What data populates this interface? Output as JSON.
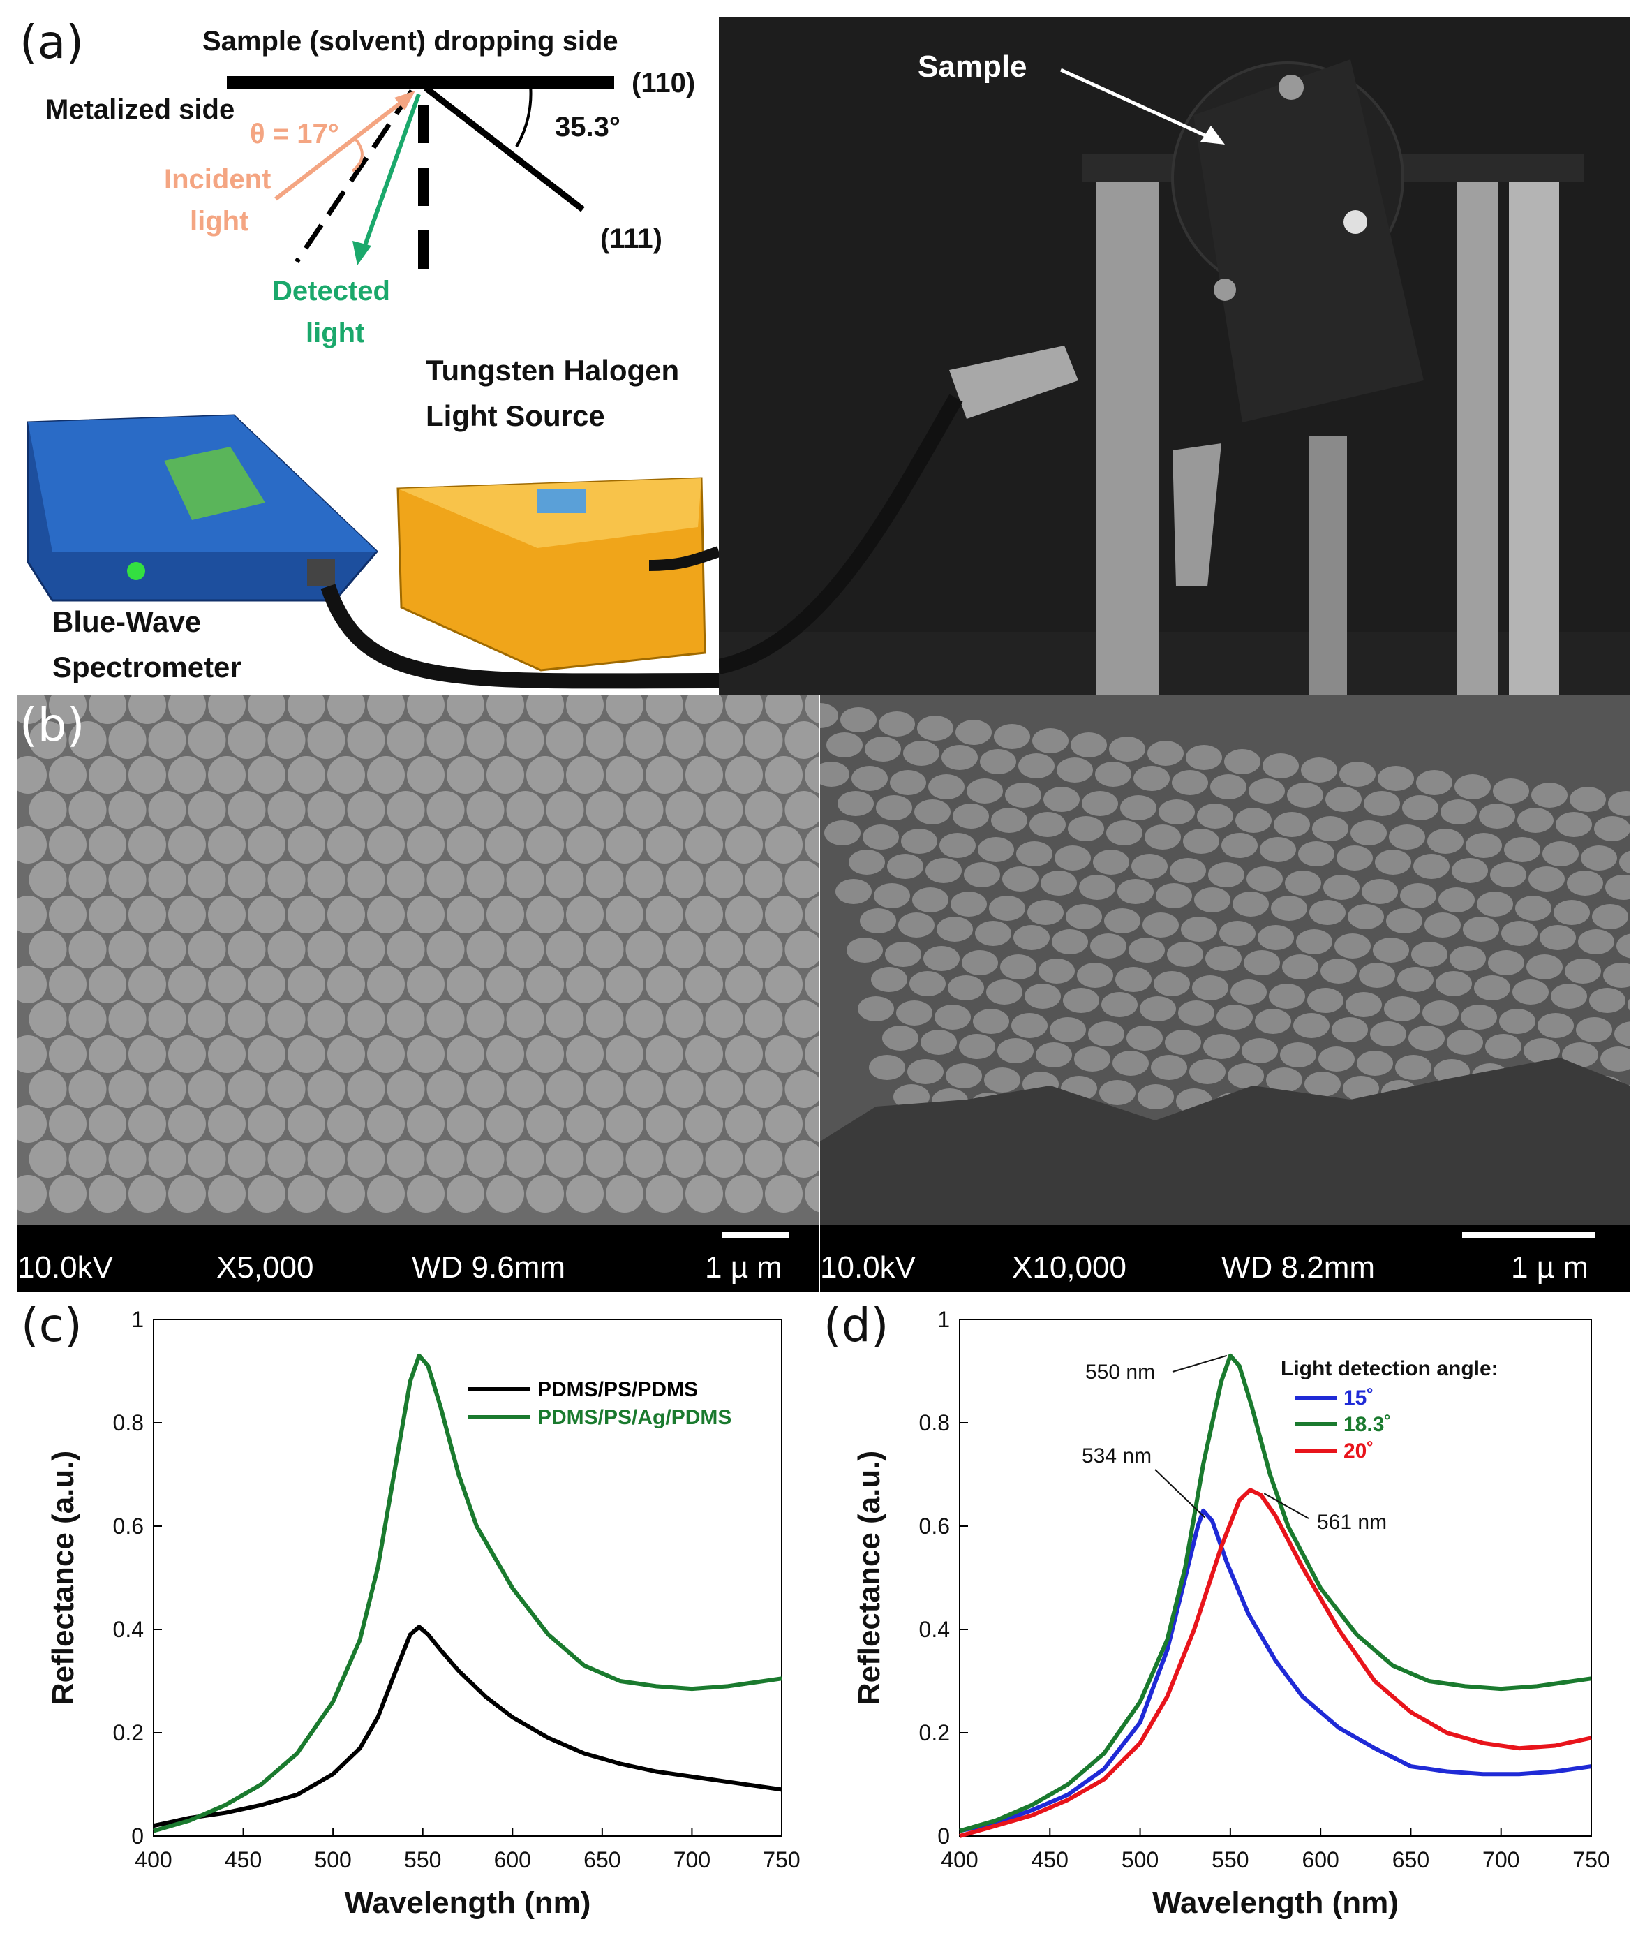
{
  "panel_a": {
    "letter": "(a)",
    "top_label": "Sample (solvent) dropping side",
    "metal_label": "Metalized side",
    "plane_110": "(110)",
    "plane_111": "(111)",
    "angle_label": "35.3°",
    "theta_label": "θ = 17°",
    "incident_line1": "Incident",
    "incident_line2": "light",
    "detected_line1": "Detected",
    "detected_line2": "light",
    "source_line1": "Tungsten Halogen",
    "source_line2": "Light Source",
    "spectrometer_line1": "Blue-Wave",
    "spectrometer_line2": "Spectrometer",
    "sample_label": "Sample",
    "colors": {
      "incident": "#f4a582",
      "detected": "#1aa86b"
    }
  },
  "panel_b": {
    "letter": "(b)",
    "left_bar": {
      "kv": "10.0kV",
      "mag": "X5,000",
      "wd": "WD  9.6mm",
      "scale": "1 µ m"
    },
    "right_bar": {
      "kv": "10.0kV",
      "mag": "X10,000",
      "wd": "WD  8.2mm",
      "scale": "1 µ m"
    }
  },
  "chart_data": [
    {
      "panel": "(c)",
      "type": "line",
      "xlabel": "Wavelength (nm)",
      "ylabel": "Reflectance (a.u.)",
      "xlim": [
        400,
        750
      ],
      "ylim": [
        0,
        1
      ],
      "xticks": [
        "400",
        "450",
        "500",
        "550",
        "600",
        "650",
        "700",
        "750"
      ],
      "yticks": [
        "0",
        "0.2",
        "0.4",
        "0.6",
        "0.8",
        "1"
      ],
      "legend_position": "top-right",
      "series": [
        {
          "name": "PDMS/PS/PDMS",
          "color": "#000000",
          "points": [
            [
              400,
              0.02
            ],
            [
              420,
              0.035
            ],
            [
              440,
              0.045
            ],
            [
              460,
              0.06
            ],
            [
              480,
              0.08
            ],
            [
              500,
              0.12
            ],
            [
              515,
              0.17
            ],
            [
              525,
              0.23
            ],
            [
              535,
              0.32
            ],
            [
              543,
              0.39
            ],
            [
              548,
              0.405
            ],
            [
              553,
              0.39
            ],
            [
              560,
              0.36
            ],
            [
              570,
              0.32
            ],
            [
              585,
              0.27
            ],
            [
              600,
              0.23
            ],
            [
              620,
              0.19
            ],
            [
              640,
              0.16
            ],
            [
              660,
              0.14
            ],
            [
              680,
              0.125
            ],
            [
              700,
              0.115
            ],
            [
              720,
              0.105
            ],
            [
              740,
              0.095
            ],
            [
              750,
              0.09
            ]
          ]
        },
        {
          "name": "PDMS/PS/Ag/PDMS",
          "color": "#1a7a2e",
          "points": [
            [
              400,
              0.01
            ],
            [
              420,
              0.03
            ],
            [
              440,
              0.06
            ],
            [
              460,
              0.1
            ],
            [
              480,
              0.16
            ],
            [
              500,
              0.26
            ],
            [
              515,
              0.38
            ],
            [
              525,
              0.52
            ],
            [
              535,
              0.72
            ],
            [
              543,
              0.88
            ],
            [
              548,
              0.93
            ],
            [
              553,
              0.91
            ],
            [
              560,
              0.83
            ],
            [
              570,
              0.7
            ],
            [
              580,
              0.6
            ],
            [
              600,
              0.48
            ],
            [
              620,
              0.39
            ],
            [
              640,
              0.33
            ],
            [
              660,
              0.3
            ],
            [
              680,
              0.29
            ],
            [
              700,
              0.285
            ],
            [
              720,
              0.29
            ],
            [
              740,
              0.3
            ],
            [
              750,
              0.305
            ]
          ]
        }
      ]
    },
    {
      "panel": "(d)",
      "type": "line",
      "xlabel": "Wavelength (nm)",
      "ylabel": "Reflectance (a.u.)",
      "xlim": [
        400,
        750
      ],
      "ylim": [
        0,
        1
      ],
      "xticks": [
        "400",
        "450",
        "500",
        "550",
        "600",
        "650",
        "700",
        "750"
      ],
      "yticks": [
        "0",
        "0.2",
        "0.4",
        "0.6",
        "0.8",
        "1"
      ],
      "legend_title": "Light detection angle:",
      "legend_position": "top-right",
      "annotations": [
        {
          "text": "550 nm",
          "x": 550,
          "y": 0.93
        },
        {
          "text": "534 nm",
          "x": 534,
          "y": 0.63
        },
        {
          "text": "561 nm",
          "x": 561,
          "y": 0.67
        }
      ],
      "series": [
        {
          "name": "15˚",
          "color": "#1f2ad6",
          "points": [
            [
              400,
              0.01
            ],
            [
              420,
              0.025
            ],
            [
              440,
              0.05
            ],
            [
              460,
              0.08
            ],
            [
              480,
              0.13
            ],
            [
              500,
              0.22
            ],
            [
              515,
              0.36
            ],
            [
              525,
              0.5
            ],
            [
              532,
              0.6
            ],
            [
              535,
              0.63
            ],
            [
              540,
              0.61
            ],
            [
              548,
              0.53
            ],
            [
              560,
              0.43
            ],
            [
              575,
              0.34
            ],
            [
              590,
              0.27
            ],
            [
              610,
              0.21
            ],
            [
              630,
              0.17
            ],
            [
              650,
              0.135
            ],
            [
              670,
              0.125
            ],
            [
              690,
              0.12
            ],
            [
              710,
              0.12
            ],
            [
              730,
              0.125
            ],
            [
              750,
              0.135
            ]
          ]
        },
        {
          "name": "18.3˚",
          "color": "#1a7a2e",
          "points": [
            [
              400,
              0.01
            ],
            [
              420,
              0.03
            ],
            [
              440,
              0.06
            ],
            [
              460,
              0.1
            ],
            [
              480,
              0.16
            ],
            [
              500,
              0.26
            ],
            [
              515,
              0.38
            ],
            [
              525,
              0.52
            ],
            [
              535,
              0.72
            ],
            [
              545,
              0.88
            ],
            [
              550,
              0.93
            ],
            [
              555,
              0.91
            ],
            [
              562,
              0.83
            ],
            [
              572,
              0.7
            ],
            [
              582,
              0.6
            ],
            [
              600,
              0.48
            ],
            [
              620,
              0.39
            ],
            [
              640,
              0.33
            ],
            [
              660,
              0.3
            ],
            [
              680,
              0.29
            ],
            [
              700,
              0.285
            ],
            [
              720,
              0.29
            ],
            [
              740,
              0.3
            ],
            [
              750,
              0.305
            ]
          ]
        },
        {
          "name": "20˚",
          "color": "#e8141b",
          "points": [
            [
              400,
              0.0
            ],
            [
              420,
              0.02
            ],
            [
              440,
              0.04
            ],
            [
              460,
              0.07
            ],
            [
              480,
              0.11
            ],
            [
              500,
              0.18
            ],
            [
              515,
              0.27
            ],
            [
              530,
              0.4
            ],
            [
              545,
              0.56
            ],
            [
              555,
              0.65
            ],
            [
              561,
              0.67
            ],
            [
              567,
              0.66
            ],
            [
              575,
              0.62
            ],
            [
              590,
              0.52
            ],
            [
              610,
              0.4
            ],
            [
              630,
              0.3
            ],
            [
              650,
              0.24
            ],
            [
              670,
              0.2
            ],
            [
              690,
              0.18
            ],
            [
              710,
              0.17
            ],
            [
              730,
              0.175
            ],
            [
              750,
              0.19
            ]
          ]
        }
      ]
    }
  ]
}
